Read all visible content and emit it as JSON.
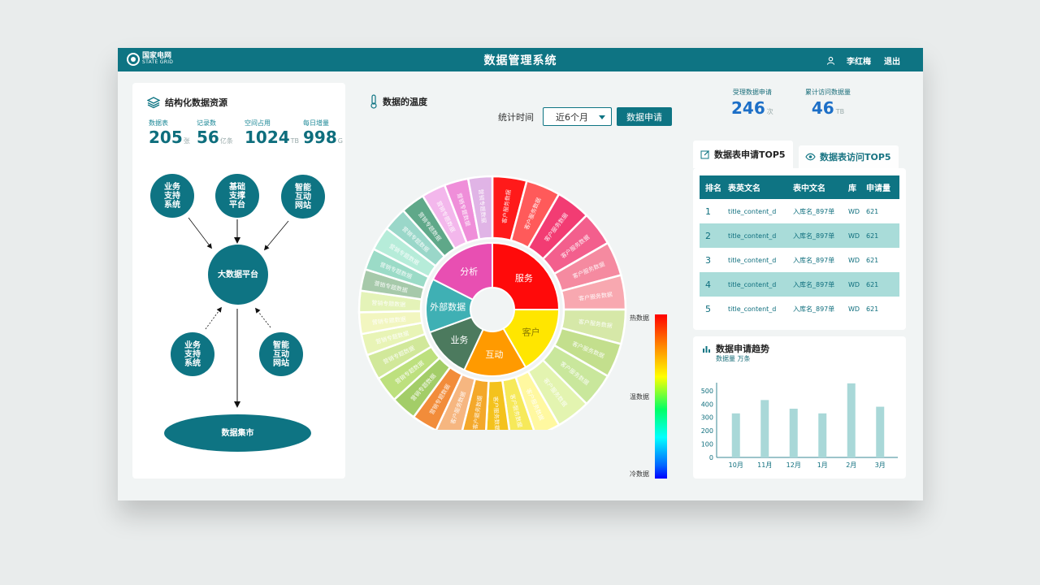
{
  "header": {
    "logo_cn": "国家电网",
    "logo_en": "STATE GRID",
    "title": "数据管理系统",
    "user_name": "李红梅",
    "logout": "退出"
  },
  "left": {
    "title": "结构化数据资源",
    "stats": [
      {
        "label": "数据表",
        "value": "205",
        "unit": "张"
      },
      {
        "label": "记录数",
        "value": "56",
        "unit": "亿条"
      },
      {
        "label": "空间占用",
        "value": "1024",
        "unit": "TB"
      },
      {
        "label": "每日增量",
        "value": "998",
        "unit": "G"
      }
    ],
    "nodes": {
      "top1": "业务支持系统",
      "top2": "基础支撑平台",
      "top3": "智能互动网站",
      "center": "大数据平台",
      "bottom1": "业务支持系统",
      "bottom2": "智能互动网站",
      "market": "数据集市"
    }
  },
  "temp": {
    "title": "数据的温度",
    "filter_label": "统计时间",
    "filter_value": "近6个月",
    "apply_button": "数据申请",
    "inner": [
      "服务",
      "客户",
      "互动",
      "业务",
      "外部数据",
      "分析"
    ],
    "outer_labels": {
      "service": "客户服务数据",
      "business": "营销专题数据"
    },
    "legend": {
      "hot": "热数据",
      "warm": "温数据",
      "cold": "冷数据"
    },
    "colors": {
      "inner": [
        "#ff0a0a",
        "#ffe600",
        "#ff9a00",
        "#4c7a5e",
        "#3fb0b4",
        "#e84fb2"
      ]
    }
  },
  "kpis": [
    {
      "label": "受理数据申请",
      "value": "246",
      "unit": "次"
    },
    {
      "label": "累计访问数据量",
      "value": "46",
      "unit": "TB"
    }
  ],
  "tabs": {
    "active": "数据表申请TOP5",
    "inactive": "数据表访问TOP5"
  },
  "table": {
    "headers": [
      "排名",
      "表英文名",
      "表中文名",
      "库",
      "申请量"
    ],
    "rows": [
      {
        "rank": "1",
        "en": "title_content_d",
        "cn": "入库名_897单",
        "db": "WD",
        "count": "621"
      },
      {
        "rank": "2",
        "en": "title_content_d",
        "cn": "入库名_897单",
        "db": "WD",
        "count": "621"
      },
      {
        "rank": "3",
        "en": "title_content_d",
        "cn": "入库名_897单",
        "db": "WD",
        "count": "621"
      },
      {
        "rank": "4",
        "en": "title_content_d",
        "cn": "入库名_897单",
        "db": "WD",
        "count": "621"
      },
      {
        "rank": "5",
        "en": "title_content_d",
        "cn": "入库名_897单",
        "db": "WD",
        "count": "621"
      }
    ]
  },
  "chart_data": {
    "type": "bar",
    "title": "数据申请趋势",
    "ylabel": "数据量 万条",
    "categories": [
      "10月",
      "11月",
      "12月",
      "1月",
      "2月",
      "3月"
    ],
    "values": [
      330,
      430,
      365,
      330,
      555,
      380
    ],
    "ylim": [
      0,
      600
    ],
    "yticks": [
      0,
      100,
      200,
      300,
      400,
      500
    ],
    "grid": false,
    "color": "#a9d8d8"
  }
}
